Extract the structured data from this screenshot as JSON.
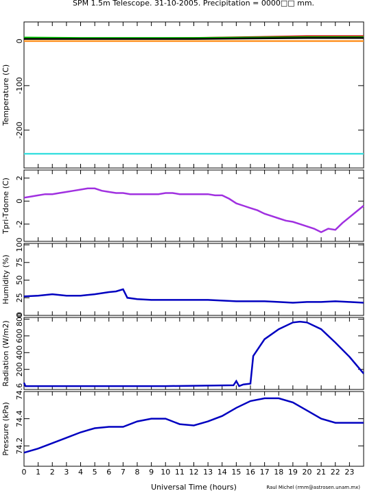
{
  "title": "SPM 1.5m Telescope. 31-10-2005. Precipitation = 0000□□ mm.",
  "credit": "Raul Michel (rmm@astrosen.unam.mx)",
  "chart_data": [
    {
      "type": "line",
      "ylabel": "Temperature (C)",
      "ylim": [
        -285,
        43
      ],
      "yticks": [
        0,
        -100,
        -200
      ],
      "x": [
        0,
        4,
        8,
        12,
        16,
        20,
        24
      ],
      "series": [
        {
          "color": "#d00000",
          "values": [
            6,
            6,
            6,
            7,
            9,
            11,
            11
          ]
        },
        {
          "color": "#00c000",
          "values": [
            8,
            7,
            7,
            7,
            8,
            9,
            9
          ]
        },
        {
          "color": "#000000",
          "values": [
            5,
            5,
            5,
            5,
            6,
            7,
            7
          ]
        },
        {
          "color": "#ff9020",
          "values": [
            0,
            0,
            0,
            0,
            0,
            0,
            0
          ]
        },
        {
          "color": "#40e0e0",
          "values": [
            -253,
            -253,
            -253,
            -253,
            -253,
            -253,
            -253
          ]
        }
      ]
    },
    {
      "type": "line",
      "ylabel": "Tpri-Tdome (C)",
      "ylim": [
        -3.5,
        2.7
      ],
      "yticks": [
        2,
        0,
        -2
      ],
      "x": [
        0,
        0.5,
        1,
        1.5,
        2,
        2.5,
        3,
        3.5,
        4,
        4.5,
        5,
        5.5,
        6,
        6.5,
        7,
        7.5,
        8,
        8.5,
        9,
        9.5,
        10,
        10.5,
        11,
        11.5,
        12,
        12.5,
        13,
        13.5,
        14,
        14.5,
        15,
        15.5,
        16,
        16.5,
        17,
        17.5,
        18,
        18.5,
        19,
        19.5,
        20,
        20.5,
        21,
        21.5,
        22,
        22.5,
        23,
        23.5,
        24
      ],
      "series": [
        {
          "color": "#a030e0",
          "values": [
            0.3,
            0.4,
            0.5,
            0.6,
            0.6,
            0.7,
            0.8,
            0.9,
            1.0,
            1.1,
            1.1,
            0.9,
            0.8,
            0.7,
            0.7,
            0.6,
            0.6,
            0.6,
            0.6,
            0.6,
            0.7,
            0.7,
            0.6,
            0.6,
            0.6,
            0.6,
            0.6,
            0.5,
            0.5,
            0.2,
            -0.2,
            -0.4,
            -0.6,
            -0.8,
            -1.1,
            -1.3,
            -1.5,
            -1.7,
            -1.8,
            -2.0,
            -2.2,
            -2.4,
            -2.7,
            -2.4,
            -2.5,
            -1.9,
            -1.4,
            -0.9,
            -0.4
          ]
        }
      ]
    },
    {
      "type": "line",
      "ylabel": "Humidity (%)",
      "ylim": [
        0,
        102
      ],
      "yticks": [
        0,
        25,
        50,
        75,
        100
      ],
      "x": [
        0,
        1,
        2,
        3,
        4,
        5,
        6,
        6.5,
        7,
        7.3,
        8,
        9,
        10,
        11,
        12,
        13,
        14,
        15,
        16,
        17,
        18,
        19,
        20,
        21,
        22,
        23,
        24
      ],
      "series": [
        {
          "color": "#0000c0",
          "values": [
            27,
            28,
            30,
            28,
            28,
            30,
            33,
            34,
            37,
            25,
            23,
            22,
            22,
            22,
            22,
            22,
            21,
            20,
            20,
            20,
            19,
            18,
            19,
            19,
            20,
            19,
            18
          ]
        }
      ]
    },
    {
      "type": "line",
      "ylabel": "Radiation (W/m2)",
      "ylim": [
        -40,
        820
      ],
      "yticks": [
        200,
        400,
        600,
        800
      ],
      "x": [
        0,
        0.1,
        0.3,
        1,
        5,
        10,
        14.8,
        15,
        15.2,
        15.5,
        16,
        16.2,
        17,
        18,
        19,
        19.5,
        20,
        21,
        22,
        23,
        24
      ],
      "series": [
        {
          "color": "#0000c0",
          "values": [
            40,
            0,
            0,
            0,
            0,
            0,
            10,
            60,
            0,
            20,
            30,
            360,
            560,
            680,
            760,
            770,
            760,
            680,
            520,
            350,
            150
          ]
        }
      ]
    },
    {
      "type": "line",
      "ylabel": "Pressure (kPa)",
      "xlabel": "Universal Time (hours)",
      "ylim": [
        74.05,
        74.6
      ],
      "yticks": [
        74.2,
        74.4,
        74.6
      ],
      "xlim": [
        0,
        24
      ],
      "xticks": [
        0,
        1,
        2,
        3,
        4,
        5,
        6,
        7,
        8,
        9,
        10,
        11,
        12,
        13,
        14,
        15,
        16,
        17,
        18,
        19,
        20,
        21,
        22,
        23
      ],
      "x": [
        0,
        1,
        2,
        3,
        4,
        5,
        6,
        7,
        8,
        9,
        10,
        11,
        12,
        13,
        14,
        15,
        16,
        17,
        18,
        19,
        20,
        21,
        22,
        23,
        24
      ],
      "series": [
        {
          "color": "#0000c0",
          "values": [
            74.15,
            74.18,
            74.22,
            74.26,
            74.3,
            74.33,
            74.34,
            74.34,
            74.38,
            74.4,
            74.4,
            74.36,
            74.35,
            74.38,
            74.42,
            74.48,
            74.53,
            74.55,
            74.55,
            74.52,
            74.46,
            74.4,
            74.37,
            74.37,
            74.37
          ]
        }
      ]
    }
  ]
}
